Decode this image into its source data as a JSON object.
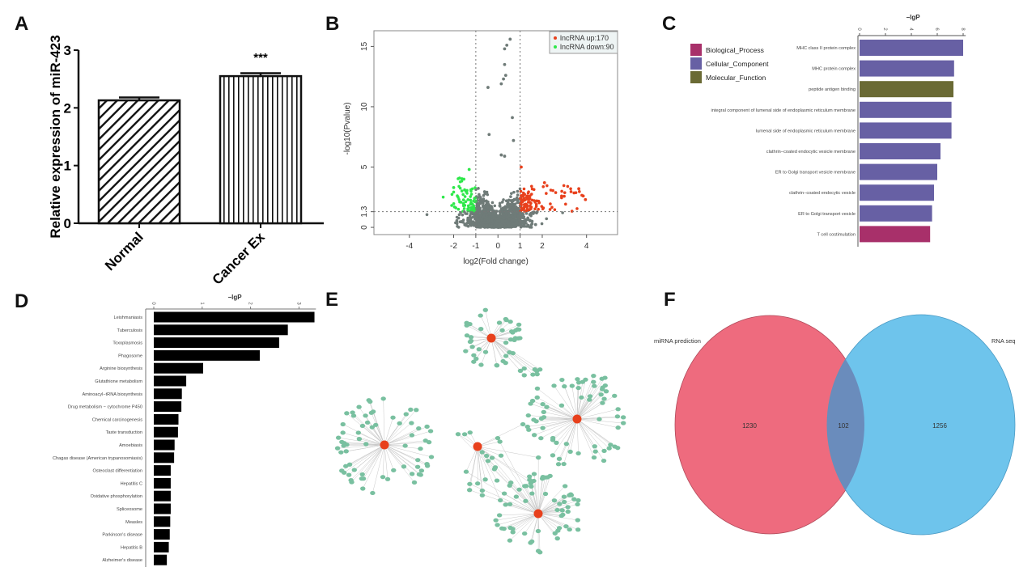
{
  "panels": {
    "a": "A",
    "b": "B",
    "c": "C",
    "d": "D",
    "e": "E",
    "f": "F"
  },
  "chart_data": [
    {
      "panel": "A",
      "type": "bar",
      "categories": [
        "Normal",
        "Cancer Ex"
      ],
      "values": [
        2.13,
        2.55
      ],
      "errors": [
        0.05,
        0.05
      ],
      "patterns": [
        "diagonal-hatch",
        "vertical-hatch"
      ],
      "annotation": "***",
      "ylabel": "Relative expression of miR-423",
      "ylim": [
        0,
        3
      ],
      "yticks": [
        "0",
        "1",
        "2",
        "3"
      ]
    },
    {
      "panel": "B",
      "type": "scatter",
      "xlabel": "log2(Fold change)",
      "ylabel": "-log10(Pvalue)",
      "xticks": [
        -4,
        -2,
        -1,
        0,
        1,
        2,
        4
      ],
      "yticks": [
        "0",
        "1.3",
        "5",
        "10",
        "15"
      ],
      "xlim": [
        -5.6,
        5.4
      ],
      "ylim": [
        -0.6,
        16.3
      ],
      "thresholds": {
        "x": [
          -1,
          1
        ],
        "y": 1.3
      },
      "legend": [
        "lncRNA up:170",
        "lncRNA down:90"
      ],
      "legend_position": "top-right",
      "colors": {
        "up": "#e8401c",
        "down": "#2ee84a",
        "ns": "#6f7b78"
      },
      "notable_points": [
        [
          0.55,
          15.6
        ],
        [
          0.4,
          15.1
        ],
        [
          0.3,
          14.8
        ],
        [
          0.3,
          13.5
        ],
        [
          0.35,
          12.6
        ],
        [
          0.25,
          12.3
        ],
        [
          0.15,
          11.9
        ],
        [
          -0.45,
          11.6
        ],
        [
          0.65,
          9.1
        ],
        [
          -0.4,
          7.7
        ],
        [
          0.7,
          7.2
        ],
        [
          0.15,
          6.0
        ],
        [
          0.3,
          5.9
        ],
        [
          1.05,
          5.0
        ],
        [
          -1.3,
          4.8
        ],
        [
          3.65,
          3.2
        ],
        [
          3.85,
          2.6
        ],
        [
          3.95,
          2.3
        ],
        [
          2.1,
          3.7
        ],
        [
          -2.0,
          3.3
        ]
      ]
    },
    {
      "panel": "C",
      "type": "bar",
      "orientation": "horizontal",
      "xlabel": "−lgP",
      "xticks": [
        "0",
        "2",
        "4",
        "6",
        "8"
      ],
      "xlim": [
        0,
        8.3
      ],
      "categories": [
        "MHC class II protein complex",
        "MHC protein complex",
        "peptide antigen binding",
        "integral component of lumenal side of endoplasmic reticulum membrane",
        "lumenal side of endoplasmic reticulum membrane",
        "clathrin−coated endocytic vesicle membrane",
        "ER to Golgi transport vesicle membrane",
        "clathrin−coated endocytic vesicle",
        "ER to Golgi transport vesicle",
        "T cell costimulation"
      ],
      "values": [
        8.0,
        7.3,
        7.25,
        7.1,
        7.1,
        6.25,
        6.0,
        5.75,
        5.6,
        5.45
      ],
      "groups": [
        "Cellular_Component",
        "Cellular_Component",
        "Molecular_Function",
        "Cellular_Component",
        "Cellular_Component",
        "Cellular_Component",
        "Cellular_Component",
        "Cellular_Component",
        "Cellular_Component",
        "Biological_Process"
      ],
      "legend": [
        {
          "name": "Biological_Process",
          "color": "#a8306a"
        },
        {
          "name": "Cellular_Component",
          "color": "#6760a4"
        },
        {
          "name": "Molecular_Function",
          "color": "#6a6a34"
        }
      ],
      "legend_position": "top-left"
    },
    {
      "panel": "D",
      "type": "bar",
      "orientation": "horizontal",
      "xlabel": "−lgP",
      "xticks": [
        "0",
        "1",
        "2",
        "3"
      ],
      "xlim": [
        0,
        3.35
      ],
      "categories": [
        "Leishmaniasis",
        "Tuberculosis",
        "Toxoplasmosis",
        "Phagosome",
        "Arginine biosynthesis",
        "Glutathione metabolism",
        "Aminoacyl−tRNA biosynthesis",
        "Drug metabolism − cytochrome P450",
        "Chemical carcinogenesis",
        "Taste transduction",
        "Amoebiasis",
        "Chagas disease (American trypanosomiasis)",
        "Osteoclast differentiation",
        "Hepatitis C",
        "Oxidative phosphorylation",
        "Spliceosome",
        "Measles",
        "Parkinson's disease",
        "Hepatitis B",
        "Alzheimer's disease"
      ],
      "values": [
        3.32,
        2.77,
        2.59,
        2.19,
        1.02,
        0.67,
        0.58,
        0.57,
        0.51,
        0.5,
        0.43,
        0.42,
        0.35,
        0.35,
        0.35,
        0.35,
        0.34,
        0.33,
        0.31,
        0.27
      ],
      "color": "#000000"
    },
    {
      "panel": "E",
      "type": "network",
      "hub_color": "#e8401c",
      "node_color": "#79c0a0",
      "hubs": 5
    },
    {
      "panel": "F",
      "type": "venn",
      "sets": [
        {
          "name": "miRNA prediction",
          "only": "1230",
          "color": "#ee6b7e"
        },
        {
          "name": "RNA seq",
          "only": "1256",
          "color": "#6ec4ec"
        }
      ],
      "intersection": "102",
      "intersection_color": "#6a8cbc"
    }
  ]
}
